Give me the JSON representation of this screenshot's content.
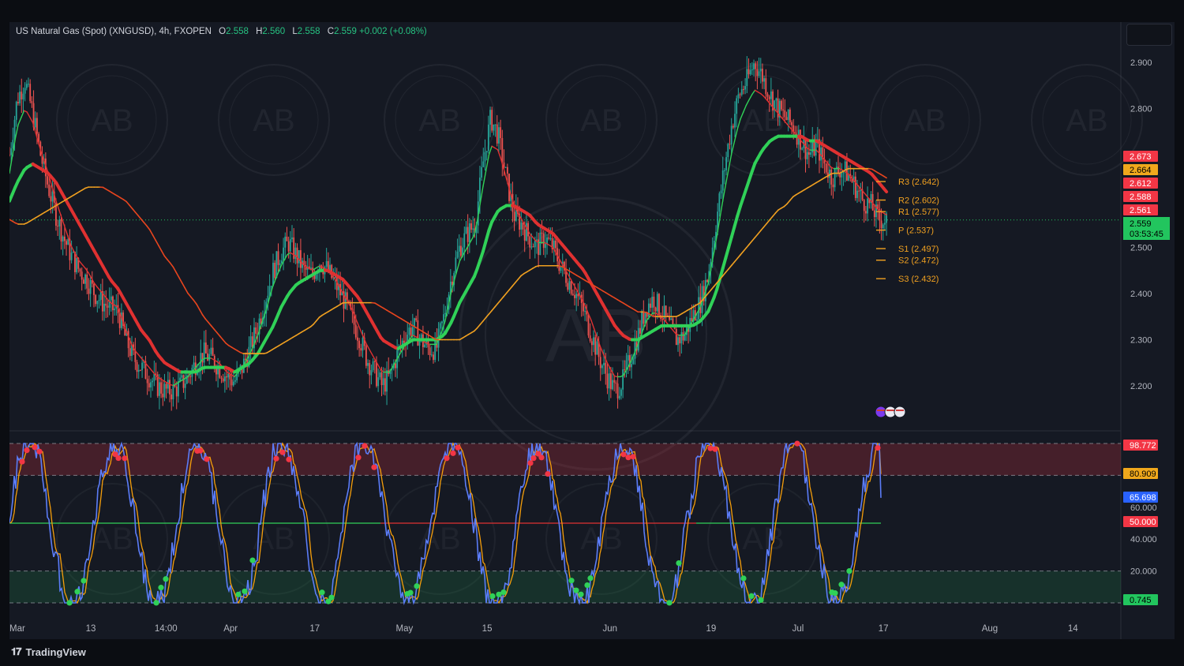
{
  "header": {
    "symbol": "US Natural Gas (Spot) (XNGUSD), 4h, FXOPEN",
    "open_label": "O",
    "open": "2.558",
    "high_label": "H",
    "high": "2.560",
    "low_label": "L",
    "low": "2.558",
    "close_label": "C",
    "close": "2.559",
    "change": "+0.002 (+0.08%)"
  },
  "branding": {
    "logo": "TradingView",
    "watermark": "AB"
  },
  "chart_data": [
    {
      "type": "line",
      "name": "price",
      "ylim": [
        2.12,
        2.98
      ],
      "y_ticks": [
        "2.900",
        "2.800",
        "2.500",
        "2.400",
        "2.300",
        "2.200"
      ],
      "x_ticks": [
        {
          "i": 0,
          "label": "Mar"
        },
        {
          "i": 47,
          "label": "13"
        },
        {
          "i": 87,
          "label": "14:00"
        },
        {
          "i": 127,
          "label": "Apr"
        },
        {
          "i": 177,
          "label": "17"
        },
        {
          "i": 227,
          "label": "May"
        },
        {
          "i": 277,
          "label": "15"
        },
        {
          "i": 347,
          "label": "Jun"
        },
        {
          "i": 407,
          "label": "19"
        },
        {
          "i": 457,
          "label": "Jul"
        },
        {
          "i": 507,
          "label": "17"
        },
        {
          "i": 567,
          "label": "Aug"
        },
        {
          "i": 617,
          "label": "14"
        }
      ],
      "x_span": 645,
      "close_series": [
        2.7,
        2.82,
        2.86,
        2.79,
        2.7,
        2.63,
        2.57,
        2.52,
        2.48,
        2.45,
        2.43,
        2.4,
        2.38,
        2.37,
        2.36,
        2.3,
        2.26,
        2.24,
        2.22,
        2.2,
        2.19,
        2.19,
        2.2,
        2.22,
        2.25,
        2.27,
        2.26,
        2.24,
        2.22,
        2.21,
        2.24,
        2.28,
        2.33,
        2.39,
        2.45,
        2.49,
        2.51,
        2.48,
        2.45,
        2.44,
        2.47,
        2.45,
        2.42,
        2.39,
        2.35,
        2.31,
        2.26,
        2.23,
        2.2,
        2.22,
        2.27,
        2.31,
        2.33,
        2.3,
        2.28,
        2.28,
        2.35,
        2.44,
        2.5,
        2.53,
        2.55,
        2.68,
        2.78,
        2.74,
        2.65,
        2.57,
        2.55,
        2.52,
        2.5,
        2.52,
        2.5,
        2.46,
        2.43,
        2.4,
        2.36,
        2.31,
        2.26,
        2.22,
        2.19,
        2.21,
        2.26,
        2.31,
        2.37,
        2.39,
        2.36,
        2.33,
        2.3,
        2.31,
        2.35,
        2.38,
        2.44,
        2.55,
        2.66,
        2.76,
        2.83,
        2.86,
        2.9,
        2.87,
        2.83,
        2.8,
        2.78,
        2.76,
        2.73,
        2.7,
        2.72,
        2.68,
        2.65,
        2.67,
        2.66,
        2.63,
        2.6,
        2.59,
        2.56,
        2.559
      ],
      "series": [
        {
          "name": "EMA fast",
          "color_up": "#30d158",
          "color_down": "#e03131",
          "width": 1.4,
          "values": [
            2.66,
            2.76,
            2.8,
            2.77,
            2.71,
            2.66,
            2.6,
            2.55,
            2.5,
            2.47,
            2.45,
            2.42,
            2.4,
            2.38,
            2.37,
            2.32,
            2.28,
            2.26,
            2.24,
            2.22,
            2.21,
            2.2,
            2.21,
            2.22,
            2.24,
            2.26,
            2.26,
            2.25,
            2.23,
            2.22,
            2.24,
            2.27,
            2.31,
            2.36,
            2.42,
            2.46,
            2.49,
            2.48,
            2.46,
            2.45,
            2.46,
            2.45,
            2.43,
            2.4,
            2.37,
            2.33,
            2.29,
            2.26,
            2.23,
            2.23,
            2.26,
            2.29,
            2.31,
            2.3,
            2.29,
            2.29,
            2.33,
            2.41,
            2.47,
            2.5,
            2.53,
            2.63,
            2.72,
            2.71,
            2.65,
            2.59,
            2.56,
            2.53,
            2.51,
            2.51,
            2.5,
            2.47,
            2.44,
            2.41,
            2.38,
            2.34,
            2.29,
            2.25,
            2.22,
            2.22,
            2.25,
            2.29,
            2.34,
            2.36,
            2.35,
            2.33,
            2.31,
            2.31,
            2.34,
            2.37,
            2.42,
            2.51,
            2.61,
            2.7,
            2.77,
            2.81,
            2.84,
            2.83,
            2.81,
            2.79,
            2.77,
            2.75,
            2.73,
            2.71,
            2.71,
            2.69,
            2.67,
            2.67,
            2.66,
            2.64,
            2.62,
            2.6,
            2.58,
            2.57
          ]
        },
        {
          "name": "EMA mid",
          "color_up": "#30d158",
          "color_down": "#e03131",
          "width": 2.2,
          "values": [
            2.6,
            2.64,
            2.67,
            2.68,
            2.67,
            2.66,
            2.64,
            2.61,
            2.58,
            2.55,
            2.52,
            2.49,
            2.46,
            2.43,
            2.41,
            2.38,
            2.35,
            2.32,
            2.3,
            2.27,
            2.25,
            2.24,
            2.23,
            2.23,
            2.23,
            2.24,
            2.24,
            2.24,
            2.24,
            2.23,
            2.24,
            2.25,
            2.27,
            2.3,
            2.33,
            2.37,
            2.4,
            2.42,
            2.43,
            2.44,
            2.45,
            2.45,
            2.44,
            2.43,
            2.41,
            2.39,
            2.36,
            2.33,
            2.3,
            2.29,
            2.28,
            2.29,
            2.3,
            2.3,
            2.3,
            2.3,
            2.31,
            2.34,
            2.38,
            2.41,
            2.44,
            2.49,
            2.55,
            2.58,
            2.59,
            2.59,
            2.58,
            2.57,
            2.55,
            2.54,
            2.53,
            2.51,
            2.49,
            2.47,
            2.45,
            2.42,
            2.39,
            2.36,
            2.33,
            2.31,
            2.3,
            2.3,
            2.31,
            2.32,
            2.33,
            2.33,
            2.33,
            2.33,
            2.33,
            2.34,
            2.36,
            2.4,
            2.46,
            2.52,
            2.58,
            2.63,
            2.68,
            2.71,
            2.73,
            2.74,
            2.74,
            2.74,
            2.74,
            2.73,
            2.73,
            2.72,
            2.71,
            2.7,
            2.69,
            2.68,
            2.67,
            2.66,
            2.64,
            2.62
          ]
        },
        {
          "name": "EMA slow",
          "color_up": "#f0a020",
          "color_down": "#e8451e",
          "width": 1.6,
          "values": [
            2.56,
            2.55,
            2.55,
            2.56,
            2.57,
            2.58,
            2.59,
            2.6,
            2.61,
            2.62,
            2.63,
            2.63,
            2.63,
            2.62,
            2.61,
            2.6,
            2.58,
            2.56,
            2.54,
            2.51,
            2.48,
            2.46,
            2.43,
            2.4,
            2.38,
            2.35,
            2.33,
            2.31,
            2.29,
            2.28,
            2.27,
            2.27,
            2.27,
            2.27,
            2.28,
            2.29,
            2.3,
            2.31,
            2.32,
            2.33,
            2.35,
            2.36,
            2.37,
            2.38,
            2.38,
            2.38,
            2.38,
            2.38,
            2.37,
            2.36,
            2.35,
            2.34,
            2.33,
            2.32,
            2.31,
            2.3,
            2.3,
            2.3,
            2.3,
            2.31,
            2.32,
            2.34,
            2.36,
            2.38,
            2.4,
            2.42,
            2.44,
            2.45,
            2.46,
            2.46,
            2.46,
            2.46,
            2.45,
            2.44,
            2.43,
            2.42,
            2.41,
            2.4,
            2.39,
            2.38,
            2.37,
            2.36,
            2.36,
            2.35,
            2.35,
            2.35,
            2.35,
            2.36,
            2.37,
            2.38,
            2.4,
            2.42,
            2.44,
            2.46,
            2.48,
            2.5,
            2.52,
            2.54,
            2.56,
            2.58,
            2.59,
            2.61,
            2.62,
            2.63,
            2.64,
            2.65,
            2.66,
            2.66,
            2.67,
            2.67,
            2.67,
            2.67,
            2.66,
            2.65
          ]
        }
      ],
      "pivots": [
        {
          "label": "R3 (2.642)",
          "value": 2.642
        },
        {
          "label": "R2 (2.602)",
          "value": 2.602
        },
        {
          "label": "R1 (2.577)",
          "value": 2.577
        },
        {
          "label": "P (2.537)",
          "value": 2.537
        },
        {
          "label": "S1 (2.497)",
          "value": 2.497
        },
        {
          "label": "S2 (2.472)",
          "value": 2.472
        },
        {
          "label": "S3 (2.432)",
          "value": 2.432
        }
      ],
      "price_tags": [
        {
          "text": "2.673",
          "value": 2.673,
          "color": "#f23645",
          "text_color": "#ffffff"
        },
        {
          "text": "2.664",
          "value": 2.664,
          "color": "#f0a81c",
          "text_color": "#000000"
        },
        {
          "text": "2.612",
          "value": 2.612,
          "color": "#f23645",
          "text_color": "#ffffff"
        },
        {
          "text": "2.588",
          "value": 2.588,
          "color": "#f23645",
          "text_color": "#ffffff"
        },
        {
          "text": "2.561",
          "value": 2.561,
          "color": "#f23645",
          "text_color": "#ffffff"
        }
      ],
      "last_price": {
        "text": "2.559",
        "countdown": "03:53:45",
        "value": 2.559,
        "color": "#22c55e"
      }
    },
    {
      "type": "line",
      "name": "stochastic",
      "ylim": [
        -2,
        102
      ],
      "y_ticks": [
        "60.000",
        "40.000",
        "20.000"
      ],
      "levels": [
        {
          "value": 100,
          "style": "dashed"
        },
        {
          "value": 80,
          "style": "dashed"
        },
        {
          "value": 50,
          "style": "solid"
        },
        {
          "value": 20,
          "style": "dashed"
        },
        {
          "value": 0,
          "style": "dashed"
        }
      ],
      "k_color": "#5b7cf7",
      "d_color": "#f59e0b",
      "price_tags": [
        {
          "text": "98.772",
          "value": 98.772,
          "color": "#f23645",
          "text_color": "#ffffff"
        },
        {
          "text": "80.909",
          "value": 80.909,
          "color": "#f0a81c",
          "text_color": "#000000"
        },
        {
          "text": "65.698",
          "value": 65.698,
          "color": "#2962ff",
          "text_color": "#ffffff"
        },
        {
          "text": "50.000",
          "value": 50,
          "color": "#f23645",
          "text_color": "#ffffff"
        },
        {
          "text": "0.745",
          "value": 0.745,
          "color": "#22c55e",
          "text_color": "#000000"
        }
      ],
      "end_value": 80.9
    }
  ],
  "colors": {
    "up": "#26a69a",
    "down": "#ef5350",
    "bg": "#151923",
    "grid": "#1f2430",
    "text": "#b2b5be"
  }
}
